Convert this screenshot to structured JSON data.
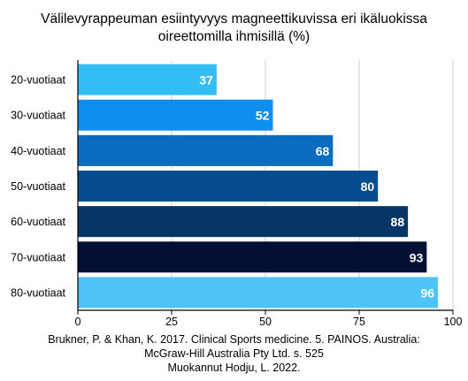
{
  "title_lines": [
    "Välilevyrappeuman esiintyvyys magneettikuvissa eri ikäluokissa",
    "oireettomilla ihmisillä (%)"
  ],
  "footer_lines": [
    "Brukner, P. & Khan, K. 2017. Clinical Sports medicine. 5. PAINOS. Australia:",
    "McGraw-Hill Australia Pty Ltd. s. 525",
    "Muokannut Hodju, L. 2022."
  ],
  "chart_data": {
    "type": "bar",
    "orientation": "horizontal",
    "title": "Välilevyrappeuman esiintyvyys magneettikuvissa eri ikäluokissa oireettomilla ihmisillä (%)",
    "categories": [
      "20-vuotiaat",
      "30-vuotiaat",
      "40-vuotiaat",
      "50-vuotiaat",
      "60-vuotiaat",
      "70-vuotiaat",
      "80-vuotiaat"
    ],
    "values": [
      37,
      52,
      68,
      80,
      88,
      93,
      96
    ],
    "bar_colors": [
      "#33bdf5",
      "#0f8ef0",
      "#0a6cc0",
      "#074c8c",
      "#063666",
      "#040f34",
      "#4ec3f7"
    ],
    "xlim": [
      0,
      100
    ],
    "xticks": [
      0,
      25,
      50,
      75,
      100
    ],
    "grid": true,
    "data_labels": true
  }
}
